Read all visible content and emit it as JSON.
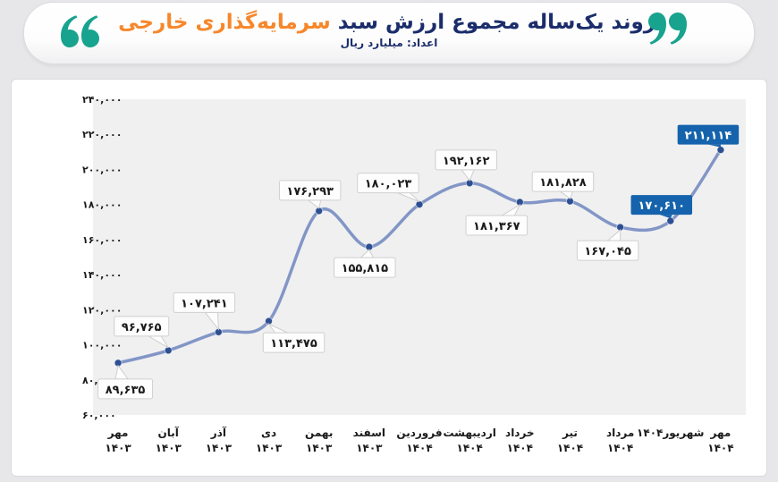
{
  "header": {
    "title_main": "روند یک‌ساله مجموع ارزش سبد",
    "title_accent": "سرمایه‌گذاری خارجی",
    "subtitle": "اعداد: میلیارد ریال"
  },
  "colors": {
    "title_navy": "#1b2d6b",
    "accent_orange": "#f6872b",
    "quote_teal": "#18a38e",
    "line": "#8296c6",
    "marker": "#2d4f92",
    "callout_blue": "#1563ac",
    "plot_bg": "#f0f0f1",
    "page_bg": "#e7e7e9",
    "card_bg": "#ffffff",
    "label_box_bg": "#fdfdfd",
    "label_box_border": "#cfcfcf",
    "tick_text": "#1a1a1a"
  },
  "chart_data": {
    "type": "line",
    "title": "روند یک‌ساله مجموع ارزش سبد سرمایه‌گذاری خارجی",
    "subtitle": "اعداد: میلیارد ریال",
    "unit": "میلیارد ریال",
    "grid": false,
    "legend": null,
    "ylim": [
      60000,
      240000
    ],
    "categories": [
      "مهر ۱۴۰۳",
      "آبان ۱۴۰۳",
      "آذر ۱۴۰۳",
      "دی ۱۴۰۳",
      "بهمن ۱۴۰۳",
      "اسفند ۱۴۰۳",
      "فروردین ۱۴۰۴",
      "اردیبهشت ۱۴۰۴",
      "خرداد ۱۴۰۴",
      "تیر ۱۴۰۴",
      "مرداد ۱۴۰۴",
      "شهریور۱۴۰۴",
      "مهر ۱۴۰۴"
    ],
    "category_lines": [
      [
        "مهر",
        "۱۴۰۳"
      ],
      [
        "آبان",
        "۱۴۰۳"
      ],
      [
        "آذر",
        "۱۴۰۳"
      ],
      [
        "دی",
        "۱۴۰۳"
      ],
      [
        "بهمن",
        "۱۴۰۳"
      ],
      [
        "اسفند",
        "۱۴۰۳"
      ],
      [
        "فروردین",
        "۱۴۰۴"
      ],
      [
        "اردیبهشت",
        "۱۴۰۴"
      ],
      [
        "خرداد",
        "۱۴۰۴"
      ],
      [
        "تیر",
        "۱۴۰۴"
      ],
      [
        "مرداد",
        "۱۴۰۴"
      ],
      [
        "شهریور۱۴۰۴",
        ""
      ],
      [
        "مهر",
        "۱۴۰۴"
      ]
    ],
    "values": [
      89635,
      96765,
      107241,
      113475,
      176293,
      155815,
      180023,
      192162,
      181367,
      181828,
      167045,
      170610,
      211114
    ],
    "point_labels": [
      "۸۹,۶۳۵",
      "۹۶,۷۶۵",
      "۱۰۷,۲۴۱",
      "۱۱۳,۴۷۵",
      "۱۷۶,۲۹۳",
      "۱۵۵,۸۱۵",
      "۱۸۰,۰۲۳",
      "۱۹۲,۱۶۲",
      "۱۸۱,۳۶۷",
      "۱۸۱,۸۲۸",
      "۱۶۷,۰۴۵",
      "۱۷۰,۶۱۰",
      "۲۱۱,۱۱۴"
    ],
    "highlighted_points": [
      11,
      12
    ],
    "y_ticks": {
      "values": [
        240000,
        220000,
        200000,
        180000,
        160000,
        140000,
        120000,
        100000,
        80000,
        60000
      ],
      "labels": [
        "۲۴۰,۰۰۰",
        "۲۲۰,۰۰۰",
        "۲۰۰,۰۰۰",
        "۱۸۰,۰۰۰",
        "۱۶۰,۰۰۰",
        "۱۴۰,۰۰۰",
        "۱۲۰,۰۰۰",
        "۱۰۰,۰۰۰",
        "۸۰,۰۰۰",
        "۶۰,۰۰۰"
      ]
    },
    "label_placement": [
      {
        "pos": "below",
        "dx": 8,
        "gap": 18,
        "accent": false
      },
      {
        "pos": "above",
        "dx": -30,
        "gap": 16,
        "accent": false
      },
      {
        "pos": "above",
        "dx": -16,
        "gap": 22,
        "accent": false
      },
      {
        "pos": "below",
        "dx": 28,
        "gap": 13,
        "accent": false
      },
      {
        "pos": "above",
        "dx": -10,
        "gap": 12,
        "accent": false
      },
      {
        "pos": "below",
        "dx": -5,
        "gap": 12,
        "accent": false
      },
      {
        "pos": "above",
        "dx": -35,
        "gap": 13,
        "accent": false
      },
      {
        "pos": "above",
        "dx": -4,
        "gap": 15,
        "accent": false
      },
      {
        "pos": "below",
        "dx": -26,
        "gap": 15,
        "accent": false
      },
      {
        "pos": "above",
        "dx": -8,
        "gap": 11,
        "accent": false
      },
      {
        "pos": "below",
        "dx": -14,
        "gap": 15,
        "accent": false
      },
      {
        "pos": "above",
        "dx": -10,
        "gap": 7,
        "accent": true
      },
      {
        "pos": "above",
        "dx": -14,
        "gap": 6,
        "accent": true
      }
    ]
  }
}
